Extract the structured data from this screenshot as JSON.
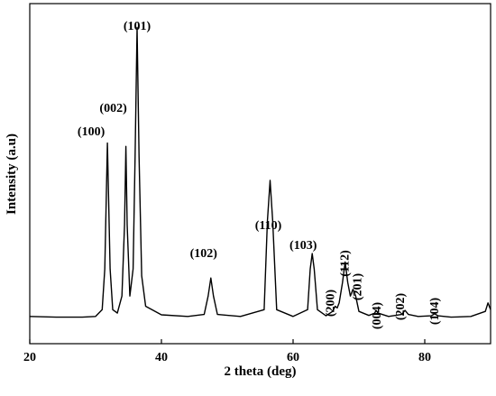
{
  "chart_data": {
    "type": "line",
    "title": "",
    "xlabel": "2 theta (deg)",
    "ylabel": "Intensity (a.u)",
    "xlim": [
      20,
      90
    ],
    "ylim": [
      0,
      100
    ],
    "x_ticks": [
      "20",
      "40",
      "60",
      "80"
    ],
    "x_tick_values": [
      20,
      40,
      60,
      80
    ],
    "grid": false,
    "legend": "none",
    "series": [
      {
        "values_description_x": [
          20,
          24,
          28,
          30,
          31.0,
          31.4,
          31.8,
          32.2,
          32.6,
          33.3,
          34.0,
          34.4,
          34.6,
          34.8,
          35.2,
          35.7,
          36.0,
          36.3,
          36.6,
          37.0,
          37.6,
          40,
          44,
          46.5,
          47.1,
          47.5,
          47.9,
          48.5,
          52,
          55.6,
          56.1,
          56.5,
          56.9,
          57.5,
          60,
          62.2,
          62.6,
          62.9,
          63.2,
          63.7,
          65,
          66.0,
          66.4,
          66.7,
          67.0,
          67.5,
          67.9,
          68.3,
          68.7,
          69.1,
          69.5,
          70.0,
          71.5,
          72.4,
          72.6,
          72.9,
          74.5,
          76.5,
          77.0,
          77.5,
          79,
          81.0,
          81.5,
          82.0,
          84,
          87,
          89.2,
          89.6,
          90
        ],
        "values": [
          8.0,
          7.8,
          7.8,
          8.0,
          10,
          22,
          59,
          22,
          10,
          9,
          14,
          35,
          58,
          35,
          14,
          22,
          55,
          93,
          55,
          20,
          11,
          8.5,
          8.0,
          8.6,
          14,
          19.3,
          14,
          8.6,
          8.0,
          10,
          36,
          48,
          36,
          10,
          8.0,
          10,
          22,
          26.5,
          22,
          10,
          8.2,
          9.5,
          11,
          10.5,
          12,
          18,
          24,
          18,
          14,
          16,
          14,
          9.5,
          8.3,
          9.0,
          9.8,
          9.0,
          8.0,
          8.6,
          9.8,
          8.6,
          8.0,
          8.2,
          8.8,
          8.2,
          7.8,
          8.0,
          9.5,
          12,
          10
        ]
      }
    ],
    "annotations": [
      {
        "text": "(100)",
        "x": 31.8
      },
      {
        "text": "(002)",
        "x": 34.6
      },
      {
        "text": "(101)",
        "x": 36.3
      },
      {
        "text": "(102)",
        "x": 47.5
      },
      {
        "text": "(110)",
        "x": 56.5
      },
      {
        "text": "(103)",
        "x": 62.9
      },
      {
        "text": "(200)",
        "x": 66.4
      },
      {
        "text": "(112)",
        "x": 67.9
      },
      {
        "text": "(201)",
        "x": 69.1
      },
      {
        "text": "(004)",
        "x": 72.6
      },
      {
        "text": "(202)",
        "x": 77.0
      },
      {
        "text": "(104)",
        "x": 81.5
      }
    ]
  }
}
